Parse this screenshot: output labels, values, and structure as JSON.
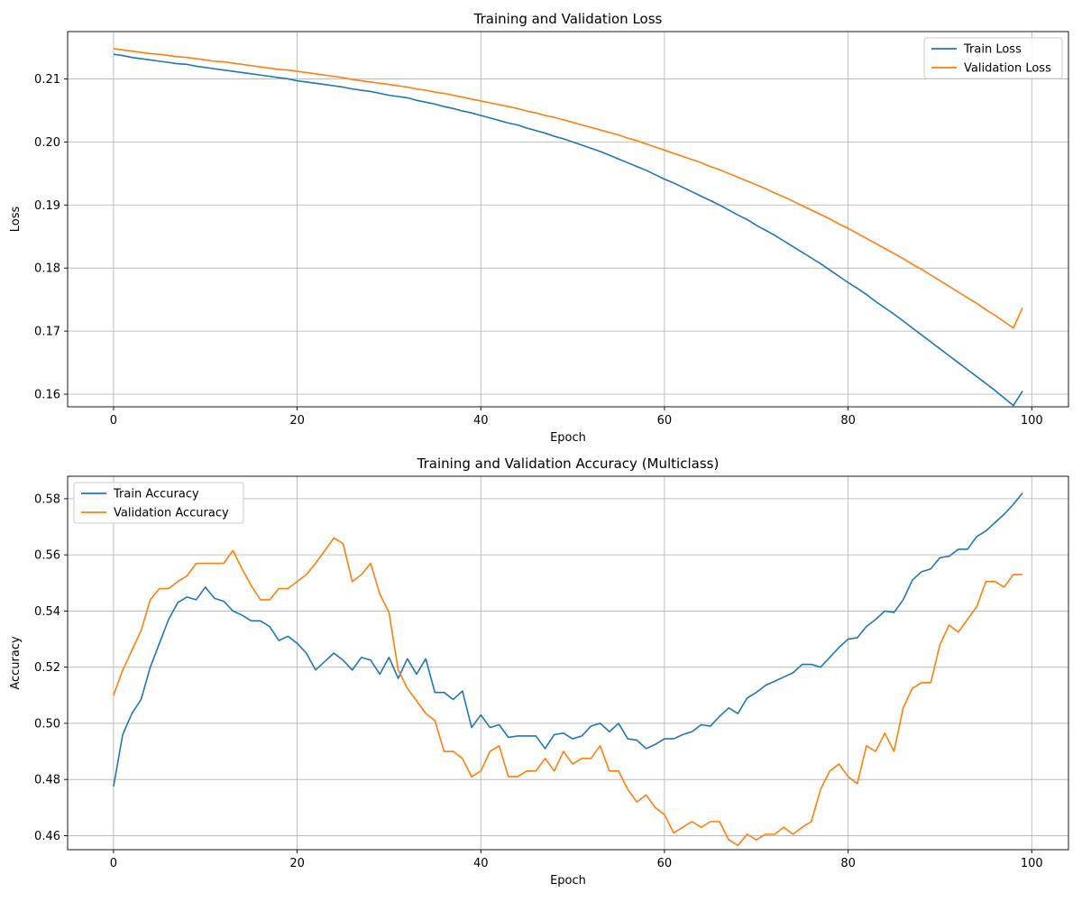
{
  "chart_data": [
    {
      "type": "line",
      "title": "Training and Validation Loss",
      "xlabel": "Epoch",
      "ylabel": "Loss",
      "xlim": [
        -5,
        104
      ],
      "ylim": [
        0.158,
        0.2175
      ],
      "xticks": [
        0,
        20,
        40,
        60,
        80,
        100
      ],
      "xtick_labels": [
        "0",
        "20",
        "40",
        "60",
        "80",
        "100"
      ],
      "yticks": [
        0.16,
        0.17,
        0.18,
        0.19,
        0.2,
        0.21
      ],
      "ytick_labels": [
        "0.16",
        "0.17",
        "0.18",
        "0.19",
        "0.20",
        "0.21"
      ],
      "grid": true,
      "legend_position": "top-right",
      "x_start": 0,
      "series": [
        {
          "name": "Train Loss",
          "color": "#1f77b4",
          "values": [
            0.2139,
            0.2137,
            0.2134,
            0.2132,
            0.213,
            0.2128,
            0.2126,
            0.2124,
            0.2123,
            0.212,
            0.2118,
            0.2116,
            0.2114,
            0.2112,
            0.211,
            0.2108,
            0.2106,
            0.2104,
            0.2102,
            0.21,
            0.2097,
            0.2095,
            0.2093,
            0.2091,
            0.2089,
            0.2087,
            0.2084,
            0.2082,
            0.208,
            0.2077,
            0.2074,
            0.2072,
            0.207,
            0.2066,
            0.2063,
            0.206,
            0.2056,
            0.2053,
            0.2049,
            0.2046,
            0.2042,
            0.2038,
            0.2034,
            0.203,
            0.2027,
            0.2022,
            0.2018,
            0.2014,
            0.2009,
            0.2005,
            0.2,
            0.1995,
            0.199,
            0.1985,
            0.1979,
            0.1973,
            0.1967,
            0.1961,
            0.1955,
            0.1948,
            0.1941,
            0.1935,
            0.1928,
            0.1921,
            0.1914,
            0.1907,
            0.19,
            0.1892,
            0.1884,
            0.1877,
            0.1868,
            0.186,
            0.1852,
            0.1843,
            0.1834,
            0.1825,
            0.1816,
            0.1807,
            0.1797,
            0.1787,
            0.1777,
            0.1768,
            0.1758,
            0.1747,
            0.1737,
            0.1727,
            0.1716,
            0.1705,
            0.1694,
            0.1683,
            0.1672,
            0.1661,
            0.165,
            0.1639,
            0.1628,
            0.1617,
            0.1606,
            0.1594,
            0.1582,
            0.1605
          ]
        },
        {
          "name": "Validation Loss",
          "color": "#ff7f0e",
          "values": [
            0.2148,
            0.2146,
            0.2144,
            0.2142,
            0.214,
            0.2139,
            0.2137,
            0.2135,
            0.2134,
            0.2132,
            0.213,
            0.2128,
            0.2127,
            0.2125,
            0.2123,
            0.2121,
            0.2119,
            0.2117,
            0.2115,
            0.2114,
            0.2112,
            0.211,
            0.2108,
            0.2106,
            0.2104,
            0.2102,
            0.2099,
            0.2097,
            0.2095,
            0.2093,
            0.2091,
            0.2089,
            0.2087,
            0.2084,
            0.2082,
            0.2079,
            0.2077,
            0.2074,
            0.2071,
            0.2068,
            0.2065,
            0.2062,
            0.2059,
            0.2056,
            0.2053,
            0.2049,
            0.2046,
            0.2042,
            0.2039,
            0.2035,
            0.2031,
            0.2027,
            0.2023,
            0.2019,
            0.2015,
            0.2011,
            0.2006,
            0.2002,
            0.1997,
            0.1992,
            0.1987,
            0.1982,
            0.1977,
            0.1972,
            0.1967,
            0.1961,
            0.1956,
            0.195,
            0.1944,
            0.1938,
            0.1932,
            0.1926,
            0.1919,
            0.1913,
            0.1906,
            0.1899,
            0.1892,
            0.1885,
            0.1878,
            0.187,
            0.1863,
            0.1855,
            0.1847,
            0.1839,
            0.1831,
            0.1823,
            0.1815,
            0.1806,
            0.1798,
            0.1789,
            0.178,
            0.1771,
            0.1762,
            0.1753,
            0.1744,
            0.1734,
            0.1725,
            0.1715,
            0.1705,
            0.1737
          ]
        }
      ]
    },
    {
      "type": "line",
      "title": "Training and Validation Accuracy (Multiclass)",
      "xlabel": "Epoch",
      "ylabel": "Accuracy",
      "xlim": [
        -5,
        104
      ],
      "ylim": [
        0.455,
        0.588
      ],
      "xticks": [
        0,
        20,
        40,
        60,
        80,
        100
      ],
      "xtick_labels": [
        "0",
        "20",
        "40",
        "60",
        "80",
        "100"
      ],
      "yticks": [
        0.46,
        0.48,
        0.5,
        0.52,
        0.54,
        0.56,
        0.58
      ],
      "ytick_labels": [
        "0.46",
        "0.48",
        "0.50",
        "0.52",
        "0.54",
        "0.56",
        "0.58"
      ],
      "grid": true,
      "legend_position": "top-left",
      "x_start": 0,
      "series": [
        {
          "name": "Train Accuracy",
          "color": "#1f77b4",
          "values": [
            0.4775,
            0.496,
            0.5035,
            0.5085,
            0.52,
            0.5285,
            0.537,
            0.543,
            0.545,
            0.544,
            0.5485,
            0.5445,
            0.5435,
            0.54,
            0.5385,
            0.5365,
            0.5365,
            0.5345,
            0.5295,
            0.531,
            0.5285,
            0.525,
            0.519,
            0.522,
            0.525,
            0.5225,
            0.519,
            0.5235,
            0.5225,
            0.5175,
            0.5235,
            0.516,
            0.523,
            0.5175,
            0.523,
            0.511,
            0.511,
            0.5085,
            0.5115,
            0.4985,
            0.503,
            0.4985,
            0.4995,
            0.495,
            0.4955,
            0.4955,
            0.4955,
            0.491,
            0.496,
            0.4965,
            0.4945,
            0.4955,
            0.499,
            0.5,
            0.497,
            0.5,
            0.4945,
            0.494,
            0.491,
            0.4925,
            0.4945,
            0.4945,
            0.496,
            0.497,
            0.4995,
            0.499,
            0.5025,
            0.5055,
            0.5035,
            0.509,
            0.511,
            0.5135,
            0.515,
            0.5165,
            0.518,
            0.521,
            0.521,
            0.52,
            0.5235,
            0.527,
            0.53,
            0.5305,
            0.5345,
            0.537,
            0.54,
            0.5395,
            0.544,
            0.551,
            0.554,
            0.555,
            0.559,
            0.5595,
            0.562,
            0.562,
            0.5665,
            0.5685,
            0.5715,
            0.5745,
            0.578,
            0.582
          ]
        },
        {
          "name": "Validation Accuracy",
          "color": "#ff7f0e",
          "values": [
            0.51,
            0.519,
            0.526,
            0.533,
            0.544,
            0.548,
            0.548,
            0.5505,
            0.5525,
            0.557,
            0.557,
            0.557,
            0.557,
            0.5615,
            0.555,
            0.549,
            0.544,
            0.544,
            0.548,
            0.548,
            0.5505,
            0.553,
            0.557,
            0.5615,
            0.566,
            0.564,
            0.5505,
            0.553,
            0.557,
            0.546,
            0.5395,
            0.519,
            0.5125,
            0.508,
            0.5035,
            0.501,
            0.49,
            0.49,
            0.4875,
            0.481,
            0.483,
            0.49,
            0.492,
            0.481,
            0.481,
            0.483,
            0.483,
            0.4875,
            0.483,
            0.49,
            0.4855,
            0.4875,
            0.4875,
            0.492,
            0.483,
            0.483,
            0.4765,
            0.472,
            0.4745,
            0.47,
            0.4675,
            0.461,
            0.463,
            0.465,
            0.463,
            0.465,
            0.465,
            0.4585,
            0.4565,
            0.4605,
            0.4585,
            0.4605,
            0.4605,
            0.463,
            0.4605,
            0.463,
            0.465,
            0.4765,
            0.483,
            0.4855,
            0.481,
            0.4785,
            0.492,
            0.49,
            0.4965,
            0.49,
            0.5055,
            0.5125,
            0.5145,
            0.5145,
            0.528,
            0.535,
            0.5325,
            0.537,
            0.5415,
            0.5505,
            0.5505,
            0.5485,
            0.553,
            0.553
          ]
        }
      ]
    }
  ]
}
